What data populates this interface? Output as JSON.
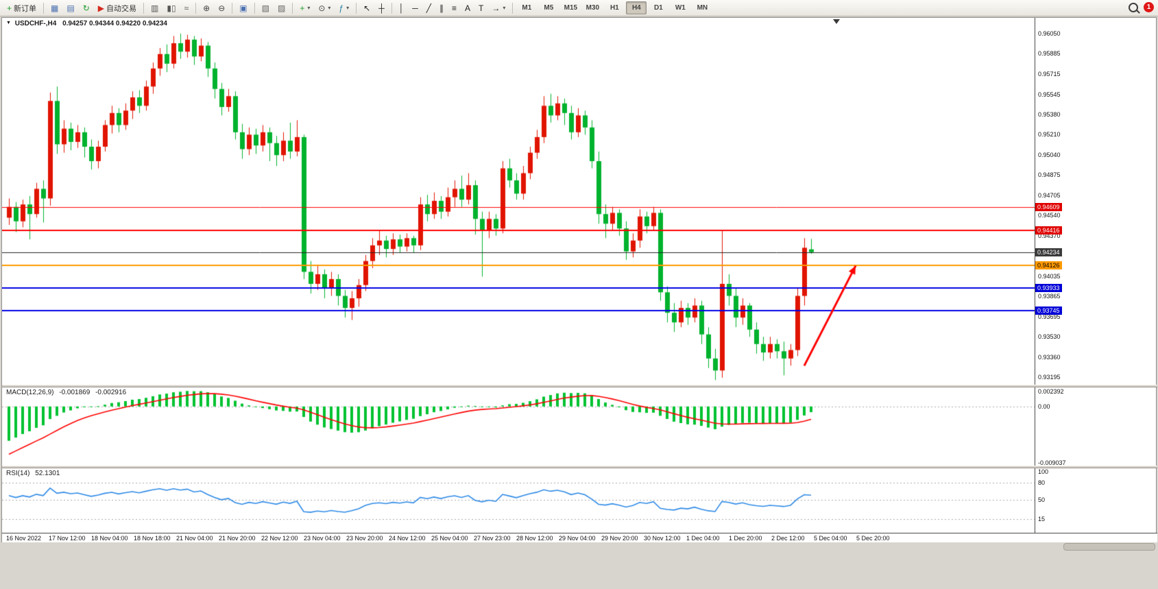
{
  "toolbar": {
    "items": [
      {
        "type": "button",
        "name": "new-order-button",
        "glyph": "+",
        "color": "#1d9e2c",
        "label": "新订单"
      },
      {
        "type": "sep"
      },
      {
        "type": "button",
        "name": "market-watch-button",
        "glyph": "▦",
        "color": "#4a6fb0"
      },
      {
        "type": "button",
        "name": "data-window-button",
        "glyph": "▤",
        "color": "#4a6fb0"
      },
      {
        "type": "button",
        "name": "refresh-button",
        "glyph": "↻",
        "color": "#1d9e2c"
      },
      {
        "type": "button",
        "name": "autotrading-button",
        "glyph": "▶",
        "color": "#d42a1d",
        "label": "自动交易"
      },
      {
        "type": "sep"
      },
      {
        "type": "button",
        "name": "bar-chart-button",
        "glyph": "▥",
        "color": "#555555"
      },
      {
        "type": "button",
        "name": "candlestick-chart-button",
        "glyph": "▮▯",
        "color": "#555555"
      },
      {
        "type": "button",
        "name": "line-chart-button",
        "glyph": "≈",
        "color": "#555555"
      },
      {
        "type": "sep"
      },
      {
        "type": "button",
        "name": "zoom-in-button",
        "glyph": "⊕",
        "color": "#444444"
      },
      {
        "type": "button",
        "name": "zoom-out-button",
        "glyph": "⊖",
        "color": "#444444"
      },
      {
        "type": "sep"
      },
      {
        "type": "button",
        "name": "tile-windows-button",
        "glyph": "▣",
        "color": "#4a6fb0"
      },
      {
        "type": "sep"
      },
      {
        "type": "button",
        "name": "arrange-windows-button",
        "glyph": "▧",
        "color": "#666666"
      },
      {
        "type": "button",
        "name": "cascade-windows-button",
        "glyph": "▨",
        "color": "#666666"
      },
      {
        "type": "sep"
      },
      {
        "type": "button",
        "name": "new-chart-button",
        "glyph": "+",
        "color": "#1d9e2c",
        "dropdown": true
      },
      {
        "type": "button",
        "name": "periods-button",
        "glyph": "⊙",
        "color": "#444444",
        "dropdown": true
      },
      {
        "type": "button",
        "name": "indicators-button",
        "glyph": "ƒ",
        "color": "#1d7e9e",
        "dropdown": true
      },
      {
        "type": "sep"
      },
      {
        "type": "button",
        "name": "cursor-button",
        "glyph": "↖",
        "color": "#222222"
      },
      {
        "type": "button",
        "name": "crosshair-button",
        "glyph": "┼",
        "color": "#222222"
      },
      {
        "type": "sep"
      },
      {
        "type": "button",
        "name": "vertical-line-button",
        "glyph": "│",
        "color": "#222222"
      },
      {
        "type": "button",
        "name": "horizontal-line-button",
        "glyph": "─",
        "color": "#222222"
      },
      {
        "type": "button",
        "name": "trendline-button",
        "glyph": "╱",
        "color": "#222222"
      },
      {
        "type": "button",
        "name": "channel-button",
        "glyph": "∥",
        "color": "#222222"
      },
      {
        "type": "button",
        "name": "fibonacci-button",
        "glyph": "≡",
        "color": "#222222"
      },
      {
        "type": "button",
        "name": "text-button",
        "glyph": "A",
        "color": "#222222"
      },
      {
        "type": "button",
        "name": "text-label-button",
        "glyph": "T",
        "color": "#222222"
      },
      {
        "type": "button",
        "name": "arrows-button",
        "glyph": "→",
        "color": "#222222",
        "dropdown": true
      },
      {
        "type": "sep"
      },
      {
        "type": "tf",
        "label": "M1"
      },
      {
        "type": "tf",
        "label": "M5"
      },
      {
        "type": "tf",
        "label": "M15"
      },
      {
        "type": "tf",
        "label": "M30"
      },
      {
        "type": "tf",
        "label": "H1"
      },
      {
        "type": "tf",
        "label": "H4",
        "active": true
      },
      {
        "type": "tf",
        "label": "D1"
      },
      {
        "type": "tf",
        "label": "W1"
      },
      {
        "type": "tf",
        "label": "MN"
      }
    ],
    "notification_count": "1"
  },
  "chart": {
    "header": {
      "title": "USDCHF-,H4",
      "ohlc": "0.94257 0.94344 0.94220 0.94234"
    },
    "macd_header": {
      "name": "MACD(12,26,9)",
      "main_value": "-0.001869",
      "signal_value": "-0.002916"
    },
    "rsi_header": {
      "name": "RSI(14)",
      "value": "52.1301"
    }
  },
  "chart_data": {
    "type": "candlestick",
    "symbol": "USDCHF-",
    "timeframe": "H4",
    "last_bar": {
      "open": 0.94257,
      "high": 0.94344,
      "low": 0.9422,
      "close": 0.94234
    },
    "colors": {
      "bull": "#e01400",
      "bear": "#00b22d",
      "macd_hist": "#00c231",
      "macd_signal": "#ff0000",
      "rsi_line": "#2e8ae6",
      "level_dash": "#a8a8a8"
    },
    "candles": [
      [
        0.9452,
        0.9468,
        0.9446,
        0.9461
      ],
      [
        0.9461,
        0.9465,
        0.944,
        0.9449
      ],
      [
        0.9449,
        0.9467,
        0.9444,
        0.9463
      ],
      [
        0.9463,
        0.947,
        0.9434,
        0.9455
      ],
      [
        0.9455,
        0.9481,
        0.9452,
        0.9476
      ],
      [
        0.9476,
        0.9483,
        0.9448,
        0.9468
      ],
      [
        0.9468,
        0.9556,
        0.9462,
        0.9549
      ],
      [
        0.9549,
        0.9561,
        0.9505,
        0.9513
      ],
      [
        0.9513,
        0.9533,
        0.9506,
        0.9526
      ],
      [
        0.9526,
        0.9531,
        0.9508,
        0.9515
      ],
      [
        0.9515,
        0.9529,
        0.951,
        0.9523
      ],
      [
        0.9523,
        0.9527,
        0.9502,
        0.9511
      ],
      [
        0.9511,
        0.9517,
        0.9492,
        0.9499
      ],
      [
        0.9499,
        0.9516,
        0.9493,
        0.9511
      ],
      [
        0.9511,
        0.9533,
        0.9507,
        0.9529
      ],
      [
        0.9529,
        0.9545,
        0.9522,
        0.9539
      ],
      [
        0.9539,
        0.9543,
        0.9523,
        0.9529
      ],
      [
        0.9529,
        0.9547,
        0.9525,
        0.9541
      ],
      [
        0.9541,
        0.9557,
        0.9534,
        0.9552
      ],
      [
        0.9552,
        0.9558,
        0.9539,
        0.9545
      ],
      [
        0.9545,
        0.9566,
        0.9541,
        0.9561
      ],
      [
        0.9561,
        0.9581,
        0.9555,
        0.9576
      ],
      [
        0.9576,
        0.9593,
        0.957,
        0.9588
      ],
      [
        0.9588,
        0.9596,
        0.9573,
        0.958
      ],
      [
        0.958,
        0.9603,
        0.9576,
        0.9597
      ],
      [
        0.9597,
        0.9605,
        0.9584,
        0.959
      ],
      [
        0.959,
        0.9604,
        0.9585,
        0.96
      ],
      [
        0.96,
        0.9603,
        0.9579,
        0.9586
      ],
      [
        0.9586,
        0.9601,
        0.9582,
        0.9595
      ],
      [
        0.9595,
        0.9598,
        0.9569,
        0.9576
      ],
      [
        0.9576,
        0.9581,
        0.9551,
        0.9559
      ],
      [
        0.9559,
        0.9564,
        0.9537,
        0.9544
      ],
      [
        0.9544,
        0.9559,
        0.954,
        0.9553
      ],
      [
        0.9553,
        0.9557,
        0.9517,
        0.9523
      ],
      [
        0.9523,
        0.953,
        0.9501,
        0.9509
      ],
      [
        0.9509,
        0.9527,
        0.9504,
        0.9521
      ],
      [
        0.9521,
        0.9526,
        0.9505,
        0.9512
      ],
      [
        0.9512,
        0.9529,
        0.9507,
        0.9523
      ],
      [
        0.9523,
        0.9527,
        0.9499,
        0.9514
      ],
      [
        0.9514,
        0.952,
        0.9495,
        0.9504
      ],
      [
        0.9504,
        0.9523,
        0.9499,
        0.9516
      ],
      [
        0.9516,
        0.9531,
        0.9501,
        0.9507
      ],
      [
        0.9507,
        0.9533,
        0.9503,
        0.9519
      ],
      [
        0.9519,
        0.9521,
        0.9401,
        0.9407
      ],
      [
        0.9407,
        0.9416,
        0.9389,
        0.9397
      ],
      [
        0.9397,
        0.9413,
        0.9392,
        0.9405
      ],
      [
        0.9405,
        0.9409,
        0.9385,
        0.9393
      ],
      [
        0.9393,
        0.9407,
        0.9387,
        0.9401
      ],
      [
        0.9401,
        0.9405,
        0.9379,
        0.9387
      ],
      [
        0.9387,
        0.9392,
        0.9369,
        0.9377
      ],
      [
        0.9377,
        0.9391,
        0.9367,
        0.9385
      ],
      [
        0.9385,
        0.9401,
        0.9378,
        0.9396
      ],
      [
        0.9396,
        0.9421,
        0.9391,
        0.9416
      ],
      [
        0.9416,
        0.9435,
        0.941,
        0.9429
      ],
      [
        0.9429,
        0.9441,
        0.9421,
        0.9433
      ],
      [
        0.9433,
        0.9437,
        0.9419,
        0.9426
      ],
      [
        0.9426,
        0.9439,
        0.9421,
        0.9434
      ],
      [
        0.9434,
        0.9438,
        0.9423,
        0.9428
      ],
      [
        0.9428,
        0.9439,
        0.9424,
        0.9435
      ],
      [
        0.9435,
        0.9437,
        0.9423,
        0.9429
      ],
      [
        0.9429,
        0.9469,
        0.9425,
        0.9463
      ],
      [
        0.9463,
        0.9471,
        0.9449,
        0.9455
      ],
      [
        0.9455,
        0.9473,
        0.9451,
        0.9466
      ],
      [
        0.9466,
        0.947,
        0.9451,
        0.9457
      ],
      [
        0.9457,
        0.9477,
        0.9453,
        0.9469
      ],
      [
        0.9469,
        0.9483,
        0.9461,
        0.9476
      ],
      [
        0.9476,
        0.9487,
        0.9461,
        0.9467
      ],
      [
        0.9467,
        0.9489,
        0.9463,
        0.9479
      ],
      [
        0.9479,
        0.9483,
        0.9438,
        0.9451
      ],
      [
        0.9451,
        0.9457,
        0.9403,
        0.9441
      ],
      [
        0.9441,
        0.9457,
        0.9435,
        0.9451
      ],
      [
        0.9451,
        0.9455,
        0.9437,
        0.9443
      ],
      [
        0.9443,
        0.9499,
        0.9439,
        0.9493
      ],
      [
        0.9493,
        0.9501,
        0.9477,
        0.9483
      ],
      [
        0.9483,
        0.9489,
        0.9467,
        0.9472
      ],
      [
        0.9472,
        0.9495,
        0.9467,
        0.9489
      ],
      [
        0.9489,
        0.9511,
        0.9484,
        0.9506
      ],
      [
        0.9506,
        0.9525,
        0.9501,
        0.9519
      ],
      [
        0.9519,
        0.9553,
        0.9514,
        0.9545
      ],
      [
        0.9545,
        0.9555,
        0.9531,
        0.9537
      ],
      [
        0.9537,
        0.9553,
        0.9533,
        0.9547
      ],
      [
        0.9547,
        0.9551,
        0.9529,
        0.9539
      ],
      [
        0.9539,
        0.9545,
        0.9517,
        0.9523
      ],
      [
        0.9523,
        0.9543,
        0.9519,
        0.9537
      ],
      [
        0.9537,
        0.9541,
        0.9521,
        0.9527
      ],
      [
        0.9527,
        0.9533,
        0.9493,
        0.9499
      ],
      [
        0.9499,
        0.9507,
        0.9447,
        0.9455
      ],
      [
        0.9455,
        0.9463,
        0.9435,
        0.9447
      ],
      [
        0.9447,
        0.9461,
        0.9441,
        0.9456
      ],
      [
        0.9456,
        0.9459,
        0.9437,
        0.9443
      ],
      [
        0.9443,
        0.9449,
        0.9417,
        0.9424
      ],
      [
        0.9424,
        0.9439,
        0.9419,
        0.9433
      ],
      [
        0.9433,
        0.9459,
        0.9427,
        0.9453
      ],
      [
        0.9453,
        0.9457,
        0.9439,
        0.9445
      ],
      [
        0.9445,
        0.9461,
        0.9441,
        0.9456
      ],
      [
        0.9456,
        0.9459,
        0.9383,
        0.939
      ],
      [
        0.939,
        0.9395,
        0.9365,
        0.9373
      ],
      [
        0.9373,
        0.9381,
        0.9357,
        0.9365
      ],
      [
        0.9365,
        0.9383,
        0.9361,
        0.9377
      ],
      [
        0.9377,
        0.9381,
        0.9363,
        0.9369
      ],
      [
        0.9369,
        0.9385,
        0.9365,
        0.9379
      ],
      [
        0.9379,
        0.9383,
        0.9347,
        0.9355
      ],
      [
        0.9355,
        0.9361,
        0.9327,
        0.9335
      ],
      [
        0.9335,
        0.9343,
        0.9317,
        0.9325
      ],
      [
        0.9325,
        0.9441,
        0.9319,
        0.9397
      ],
      [
        0.9397,
        0.9405,
        0.9379,
        0.9387
      ],
      [
        0.9387,
        0.9393,
        0.9361,
        0.9369
      ],
      [
        0.9369,
        0.9385,
        0.9363,
        0.9379
      ],
      [
        0.9379,
        0.9381,
        0.9353,
        0.9359
      ],
      [
        0.9359,
        0.9365,
        0.9339,
        0.9347
      ],
      [
        0.9347,
        0.9353,
        0.9333,
        0.934
      ],
      [
        0.934,
        0.9353,
        0.9335,
        0.9347
      ],
      [
        0.9347,
        0.9351,
        0.9335,
        0.9341
      ],
      [
        0.9341,
        0.9349,
        0.9321,
        0.9335
      ],
      [
        0.9335,
        0.9347,
        0.9329,
        0.9342
      ],
      [
        0.9342,
        0.9393,
        0.9337,
        0.9387
      ],
      [
        0.9387,
        0.9435,
        0.9379,
        0.9427
      ],
      [
        0.94257,
        0.94344,
        0.9422,
        0.94234
      ]
    ],
    "price_axis_ticks": [
      0.9605,
      0.95885,
      0.95715,
      0.95545,
      0.9538,
      0.9521,
      0.9504,
      0.94875,
      0.94705,
      0.9454,
      0.9437,
      0.94035,
      0.93865,
      0.93695,
      0.9353,
      0.9336,
      0.93195
    ],
    "time_axis_ticks": [
      "16 Nov 2022",
      "17 Nov 12:00",
      "18 Nov 04:00",
      "18 Nov 18:00",
      "21 Nov 04:00",
      "21 Nov 20:00",
      "22 Nov 12:00",
      "23 Nov 04:00",
      "23 Nov 20:00",
      "24 Nov 12:00",
      "25 Nov 04:00",
      "27 Nov 23:00",
      "28 Nov 12:00",
      "29 Nov 04:00",
      "29 Nov 20:00",
      "30 Nov 12:00",
      "1 Dec 04:00",
      "1 Dec 20:00",
      "2 Dec 12:00",
      "5 Dec 04:00",
      "5 Dec 20:00"
    ],
    "hlines": [
      {
        "price": 0.94609,
        "color": "#ff0000",
        "width": 1,
        "label_bg": "#e00000",
        "label_fg": "#ffffff"
      },
      {
        "price": 0.94416,
        "color": "#ff0000",
        "width": 2,
        "label_bg": "#e00000",
        "label_fg": "#ffffff"
      },
      {
        "price": 0.94234,
        "color": "#222222",
        "width": 1,
        "label_bg": "#3a3a3a",
        "label_fg": "#ffffff"
      },
      {
        "price": 0.94126,
        "color": "#ff9900",
        "width": 2,
        "label_bg": "#ff9900",
        "label_fg": "#000000"
      },
      {
        "price": 0.93933,
        "color": "#0000e6",
        "width": 2,
        "label_bg": "#0000d8",
        "label_fg": "#ffffff"
      },
      {
        "price": 0.93745,
        "color": "#0000e6",
        "width": 2,
        "label_bg": "#0000d8",
        "label_fg": "#ffffff"
      }
    ],
    "trend_arrow": {
      "from_index": 116,
      "from_price": 0.9329,
      "to_index": 123.5,
      "to_price": 0.9412,
      "color": "#ff0000",
      "width": 3
    },
    "macd": {
      "params": "(12,26,9)",
      "main_value": -0.001869,
      "signal_value": -0.002916,
      "axis": [
        {
          "value": 0.002392,
          "label": "0.002392"
        },
        {
          "value": 0,
          "label": "0.00"
        },
        {
          "value": -0.009037,
          "label": "-0.009037"
        }
      ]
    },
    "rsi": {
      "params": "(14)",
      "value": 52.1301,
      "levels": [
        80,
        50,
        15
      ],
      "axis": [
        {
          "value": 100,
          "label": "100"
        },
        {
          "value": 80,
          "label": "80"
        },
        {
          "value": 50,
          "label": "50"
        },
        {
          "value": 15,
          "label": "15"
        }
      ]
    }
  }
}
